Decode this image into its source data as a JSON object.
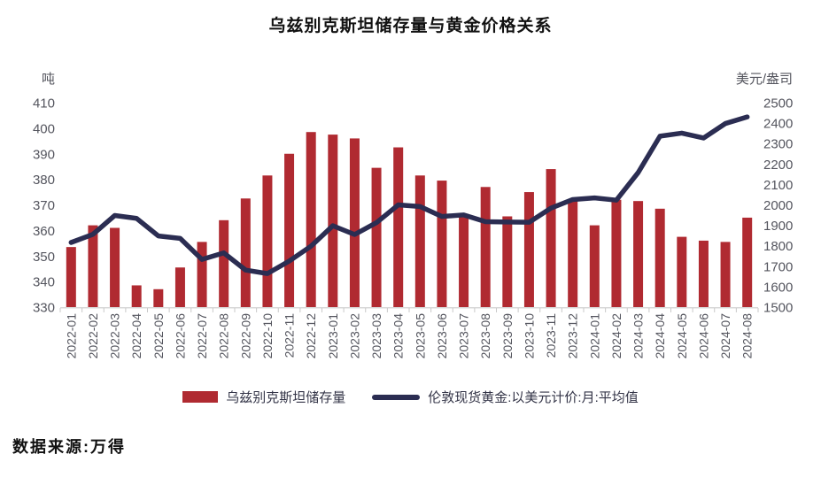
{
  "footer": {
    "source": "数据来源:万得"
  },
  "chart_data": {
    "type": "bar",
    "title": "乌兹别克斯坦储存量与黄金价格关系",
    "grid": false,
    "legend_position": "bottom",
    "categories": [
      "2022-01",
      "2022-02",
      "2022-03",
      "2022-04",
      "2022-05",
      "2022-06",
      "2022-07",
      "2022-08",
      "2022-09",
      "2022-10",
      "2022-11",
      "2022-12",
      "2023-01",
      "2023-02",
      "2023-03",
      "2023-04",
      "2023-05",
      "2023-06",
      "2023-07",
      "2023-08",
      "2023-09",
      "2023-10",
      "2023-11",
      "2023-12",
      "2024-01",
      "2024-02",
      "2024-03",
      "2024-04",
      "2024-05",
      "2024-06",
      "2024-07",
      "2024-08"
    ],
    "series": [
      {
        "name": "乌兹别克斯坦储存量",
        "type": "bar",
        "axis": "left",
        "color": "#b02a31",
        "values": [
          353.5,
          362,
          361,
          338.5,
          337,
          345.5,
          355.5,
          364,
          372.5,
          381.5,
          390,
          398.5,
          397.5,
          396,
          384.5,
          392.5,
          381.5,
          379.5,
          366.5,
          377,
          365.5,
          375,
          384,
          372,
          362,
          372,
          371.5,
          368.5,
          357.5,
          356,
          355.5,
          365
        ]
      },
      {
        "name": "伦敦现货黄金:以美元计价:月:平均值",
        "type": "line",
        "axis": "right",
        "color": "#2b2d52",
        "values": [
          1816,
          1856,
          1948,
          1934,
          1848,
          1836,
          1733,
          1765,
          1681,
          1664,
          1725,
          1798,
          1898,
          1855,
          1913,
          2000,
          1992,
          1943,
          1951,
          1918,
          1916,
          1915,
          1984,
          2026,
          2034,
          2023,
          2158,
          2336,
          2351,
          2327,
          2398,
          2430
        ]
      }
    ],
    "left_axis": {
      "unit": "吨",
      "min": 330,
      "max": 410,
      "ticks": [
        410,
        400,
        390,
        380,
        370,
        360,
        350,
        340,
        330
      ]
    },
    "right_axis": {
      "unit": "美元/盎司",
      "min": 1500,
      "max": 2500,
      "ticks": [
        2500,
        2400,
        2300,
        2200,
        2100,
        2000,
        1900,
        1800,
        1700,
        1600,
        1500
      ]
    }
  }
}
